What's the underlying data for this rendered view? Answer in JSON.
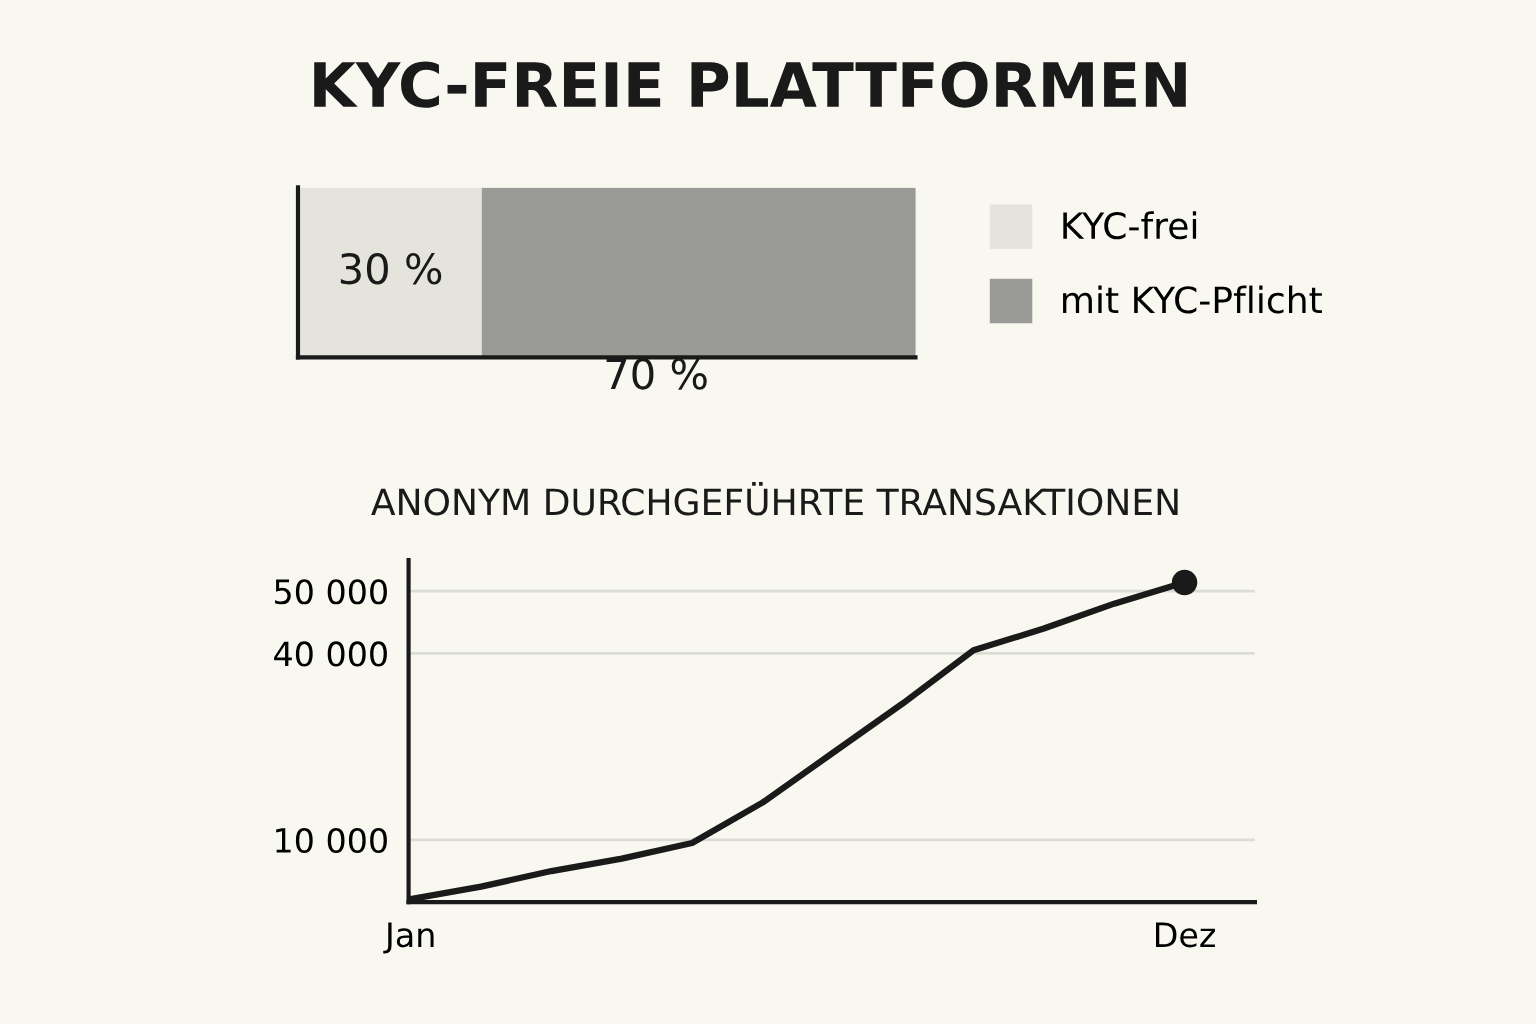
{
  "chart_data": [
    {
      "type": "bar",
      "title": "KYC-FREIE PLATTFORMEN",
      "orientation": "horizontal",
      "stacked": true,
      "categories": [
        null
      ],
      "xlim": [
        0,
        100
      ],
      "tick_labels": false,
      "legend": "right",
      "grid": false,
      "series": [
        {
          "name": "KYC-frei",
          "color": "#e4e4dc",
          "values": [
            30
          ],
          "value_labels": [
            "30 %"
          ]
        },
        {
          "name": "mit KYC-Pflicht",
          "color": "#9a9a96",
          "values": [
            70
          ],
          "value_labels": [
            "70 %"
          ]
        }
      ]
    },
    {
      "type": "line",
      "title": "ANONYM DURCHGEFÜHRTE TRANSAKTIONEN",
      "categories": [
        "Jan",
        null,
        null,
        null,
        null,
        null,
        null,
        null,
        null,
        null,
        null,
        "Dez"
      ],
      "ylim": [
        0,
        55000
      ],
      "yticks": [
        {
          "value": 10000,
          "label": "10 000"
        },
        {
          "value": 40000,
          "label": "40 000"
        },
        {
          "value": 50000,
          "label": "50 000"
        }
      ],
      "grid": "y",
      "legend": false,
      "line_style": "solid",
      "marker": "none",
      "series": [
        {
          "color": "#1a1a1a",
          "values": [
            500,
            2500,
            5000,
            7000,
            9500,
            16000,
            24000,
            32000,
            40500,
            44000,
            48000,
            51400
          ]
        },
        {
          "type": "scatter",
          "color": "#1a1a1a",
          "x": [
            "Dez"
          ],
          "values": [
            51400
          ],
          "marker": "circle"
        }
      ]
    }
  ]
}
